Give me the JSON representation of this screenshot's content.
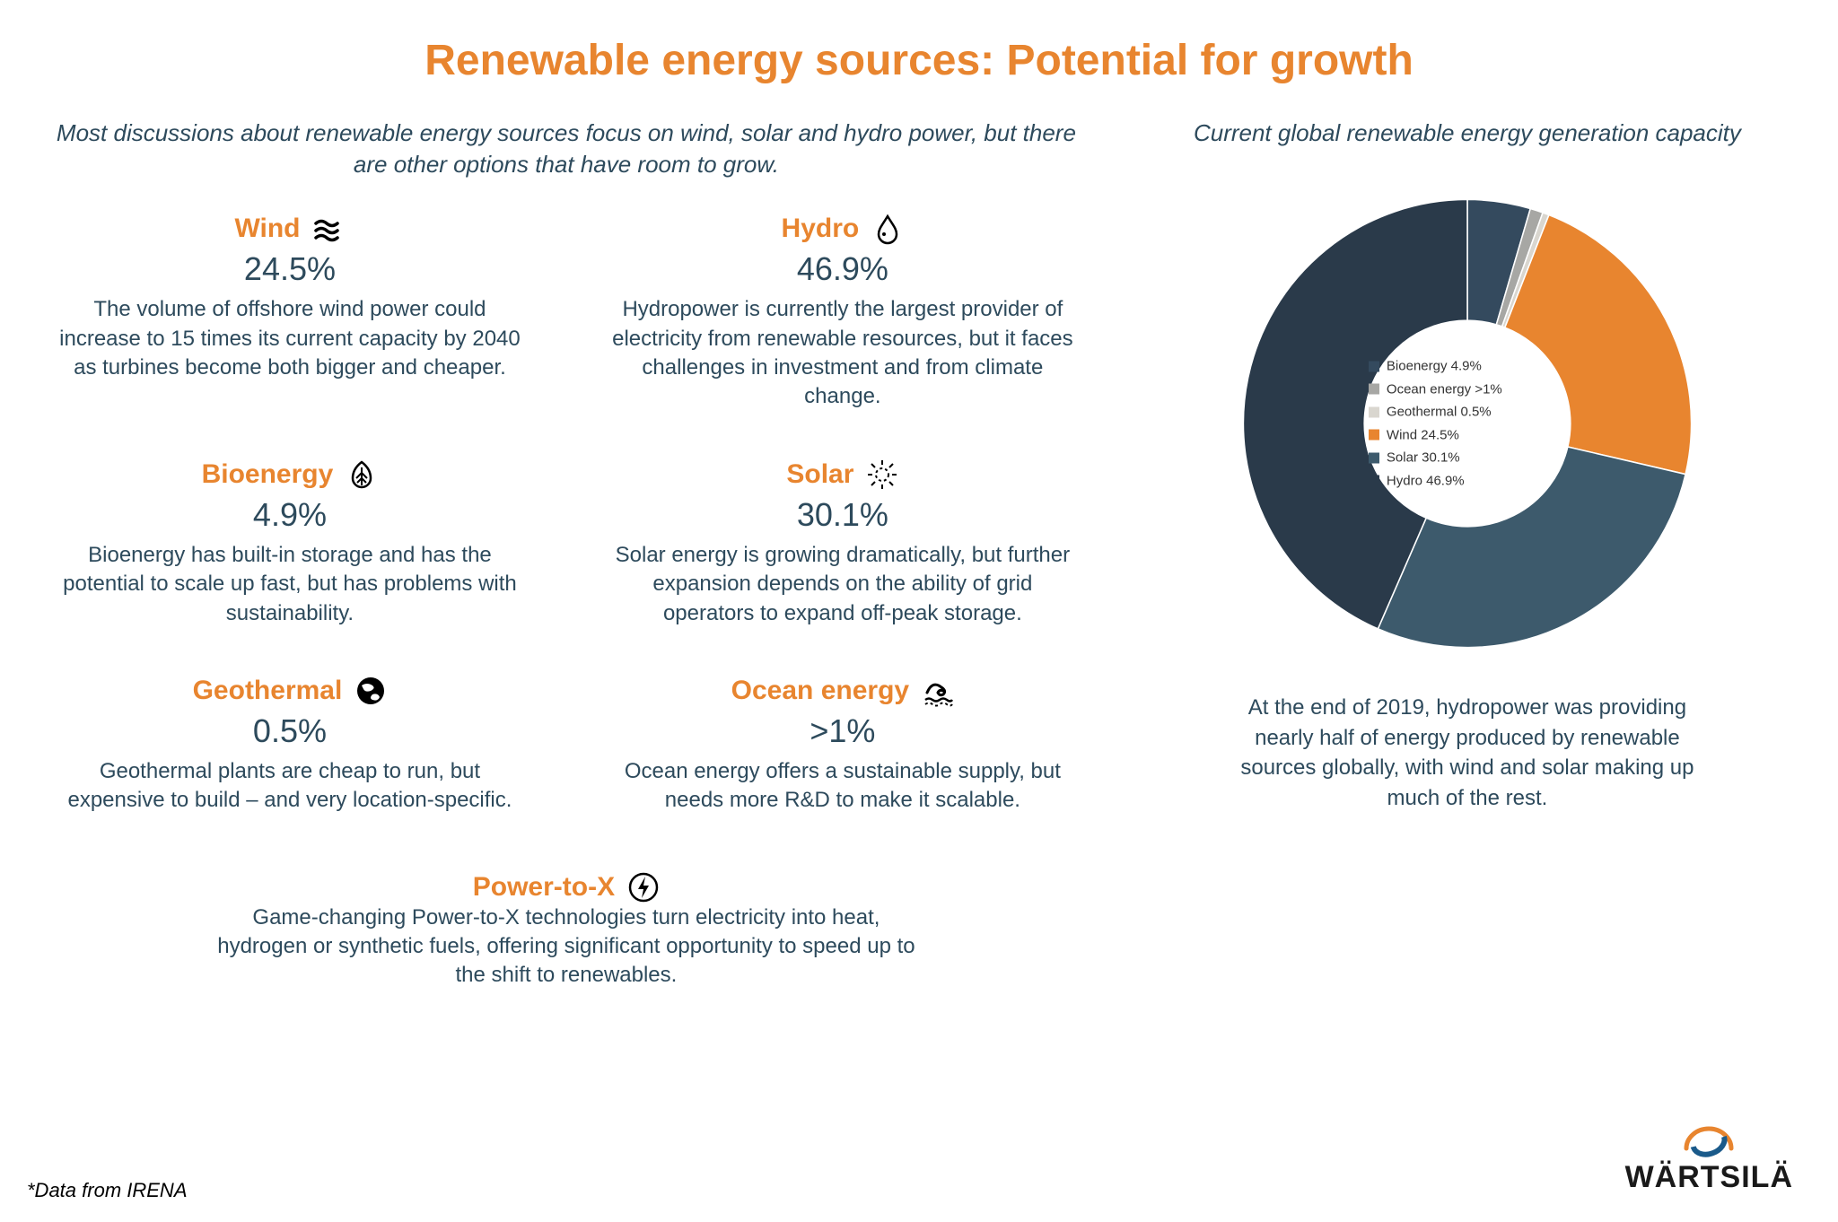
{
  "title": "Renewable energy sources: Potential for growth",
  "subtitle": "Most discussions about renewable energy sources focus on wind, solar and hydro power, but there are other options that have room to grow.",
  "chart_title": "Current global renewable energy generation capacity",
  "chart_caption": "At the end of 2019, hydropower was providing nearly half of energy produced by renewable sources globally, with wind and solar making up much of the rest.",
  "footnote": "*Data from IRENA",
  "logo_text": "WÄRTSILÄ",
  "colors": {
    "accent": "#e8852f",
    "body_text": "#2d4a5c",
    "background": "#ffffff"
  },
  "cards": {
    "wind": {
      "name": "Wind",
      "pct": "24.5%",
      "desc": "The volume of offshore wind power could increase to 15 times its current capacity by 2040 as turbines become both bigger and cheaper."
    },
    "hydro": {
      "name": "Hydro",
      "pct": "46.9%",
      "desc": "Hydropower is currently the largest provider of electricity from renewable resources, but it faces challenges in investment and from climate change."
    },
    "bioenergy": {
      "name": "Bioenergy",
      "pct": "4.9%",
      "desc": "Bioenergy has built-in storage and has the potential to scale up fast, but has problems with sustainability."
    },
    "solar": {
      "name": "Solar",
      "pct": "30.1%",
      "desc": "Solar energy is growing dramatically, but further expansion depends on the ability of grid operators to expand off-peak storage."
    },
    "geothermal": {
      "name": "Geothermal",
      "pct": "0.5%",
      "desc": "Geothermal plants are cheap to run, but expensive to build – and very location-specific."
    },
    "ocean": {
      "name": "Ocean energy",
      "pct": ">1%",
      "desc": "Ocean energy offers a sustainable supply, but needs more R&D to make it scalable."
    },
    "ptx": {
      "name": "Power-to-X",
      "desc": "Game-changing Power-to-X technologies turn electricity into heat, hydrogen or synthetic fuels, offering significant opportunity to speed up to the shift to renewables."
    }
  },
  "donut": {
    "type": "donut",
    "inner_radius_ratio": 0.46,
    "background_color": "#ffffff",
    "start_angle_deg": -90,
    "slices": [
      {
        "label": "Bioenergy 4.9%",
        "value": 4.9,
        "color": "#344a5e"
      },
      {
        "label": "Ocean energy >1%",
        "value": 1.0,
        "color": "#a7a7a4"
      },
      {
        "label": "Geothermal 0.5%",
        "value": 0.5,
        "color": "#d9d6cf"
      },
      {
        "label": "Wind 24.5%",
        "value": 24.5,
        "color": "#e8852f"
      },
      {
        "label": "Solar 30.1%",
        "value": 30.1,
        "color": "#3d5a6c"
      },
      {
        "label": "Hydro 46.9%",
        "value": 46.9,
        "color": "#2a3a4a"
      }
    ],
    "legend_font_size": 15
  }
}
